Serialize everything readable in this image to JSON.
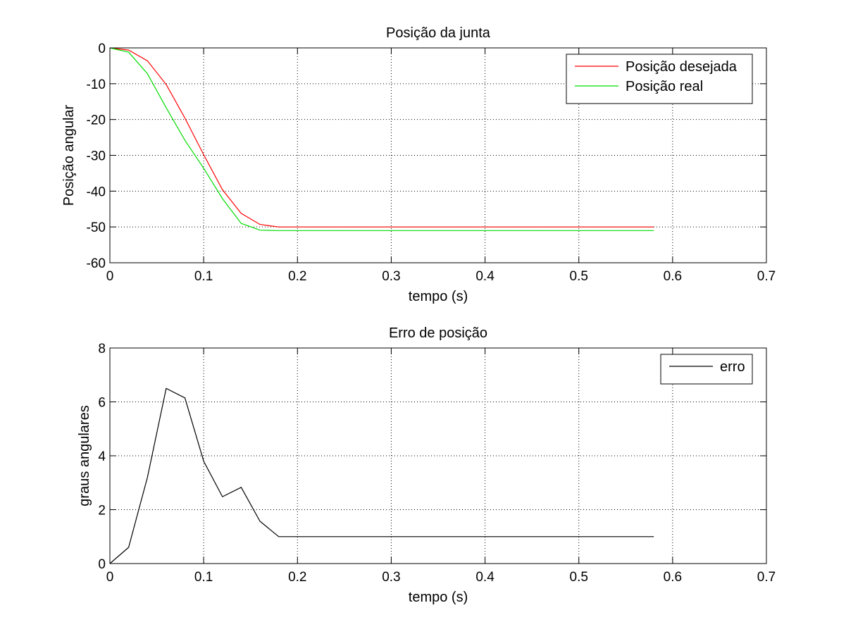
{
  "chart_data": [
    {
      "type": "line",
      "title": "Posição da junta",
      "xlabel": "tempo (s)",
      "ylabel": "Posição angular",
      "xlim": [
        0,
        0.7
      ],
      "ylim": [
        -60,
        0
      ],
      "xticks": [
        0,
        0.1,
        0.2,
        0.3,
        0.4,
        0.5,
        0.6,
        0.7
      ],
      "xtick_labels": [
        "0",
        "0.1",
        "0.2",
        "0.3",
        "0.4",
        "0.5",
        "0.6",
        "0.7"
      ],
      "yticks": [
        0,
        -10,
        -20,
        -30,
        -40,
        -50,
        -60
      ],
      "ytick_labels": [
        "0",
        "-10",
        "-20",
        "-30",
        "-40",
        "-50",
        "-60"
      ],
      "grid": true,
      "legend_position": "top-right",
      "series": [
        {
          "name": "Posição desejada",
          "color": "#ff0000",
          "x": [
            0,
            0.02,
            0.04,
            0.06,
            0.08,
            0.1,
            0.12,
            0.14,
            0.16,
            0.18,
            0.2,
            0.22,
            0.24,
            0.26,
            0.28,
            0.3,
            0.32,
            0.34,
            0.36,
            0.38,
            0.4,
            0.42,
            0.44,
            0.46,
            0.48,
            0.5,
            0.52,
            0.54,
            0.56,
            0.58
          ],
          "values": [
            0,
            -0.6,
            -3.6,
            -10.2,
            -19.6,
            -29.8,
            -39.6,
            -46.2,
            -49.3,
            -50,
            -50,
            -50,
            -50,
            -50,
            -50,
            -50,
            -50,
            -50,
            -50,
            -50,
            -50,
            -50,
            -50,
            -50,
            -50,
            -50,
            -50,
            -50,
            -50,
            -50
          ]
        },
        {
          "name": "Posição real",
          "color": "#00dd00",
          "x": [
            0,
            0.02,
            0.04,
            0.06,
            0.08,
            0.1,
            0.12,
            0.14,
            0.16,
            0.18,
            0.2,
            0.22,
            0.24,
            0.26,
            0.28,
            0.3,
            0.32,
            0.34,
            0.36,
            0.38,
            0.4,
            0.42,
            0.44,
            0.46,
            0.48,
            0.5,
            0.52,
            0.54,
            0.56,
            0.58
          ],
          "values": [
            0,
            -1.2,
            -7.2,
            -16.7,
            -25.8,
            -33.6,
            -42.1,
            -49,
            -50.9,
            -51,
            -51,
            -51,
            -51,
            -51,
            -51,
            -51,
            -51,
            -51,
            -51,
            -51,
            -51,
            -51,
            -51,
            -51,
            -51,
            -51,
            -51,
            -51,
            -51,
            -51
          ]
        }
      ]
    },
    {
      "type": "line",
      "title": "Erro de posição",
      "xlabel": "tempo (s)",
      "ylabel": "graus angulares",
      "xlim": [
        0,
        0.7
      ],
      "ylim": [
        0,
        8
      ],
      "xticks": [
        0,
        0.1,
        0.2,
        0.3,
        0.4,
        0.5,
        0.6,
        0.7
      ],
      "xtick_labels": [
        "0",
        "0.1",
        "0.2",
        "0.3",
        "0.4",
        "0.5",
        "0.6",
        "0.7"
      ],
      "yticks": [
        0,
        2,
        4,
        6,
        8
      ],
      "ytick_labels": [
        "0",
        "2",
        "4",
        "6",
        "8"
      ],
      "grid": true,
      "legend_position": "top-right",
      "series": [
        {
          "name": "erro",
          "color": "#000000",
          "x": [
            0,
            0.02,
            0.04,
            0.06,
            0.08,
            0.1,
            0.12,
            0.14,
            0.16,
            0.18,
            0.2,
            0.22,
            0.24,
            0.26,
            0.28,
            0.3,
            0.32,
            0.34,
            0.36,
            0.38,
            0.4,
            0.42,
            0.44,
            0.46,
            0.48,
            0.5,
            0.52,
            0.54,
            0.56,
            0.58
          ],
          "values": [
            0,
            0.6,
            3.2,
            6.5,
            6.15,
            3.8,
            2.48,
            2.83,
            1.57,
            1.0,
            1.0,
            1.0,
            1.0,
            1.0,
            1.0,
            1.0,
            1.0,
            1.0,
            1.0,
            1.0,
            1.0,
            1.0,
            1.0,
            1.0,
            1.0,
            1.0,
            1.0,
            1.0,
            1.0,
            1.0
          ]
        }
      ]
    }
  ]
}
